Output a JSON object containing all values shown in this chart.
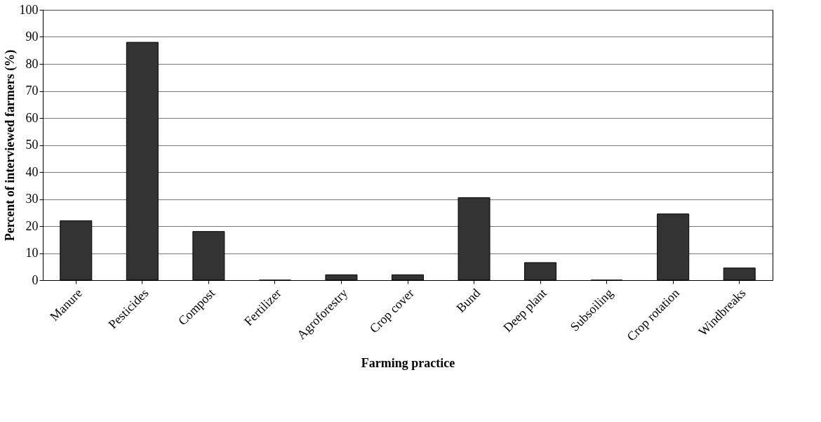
{
  "chart_data": {
    "type": "bar",
    "xlabel": "Farming practice",
    "ylabel": "Percent of interviewed farmers (%)",
    "categories": [
      "Manure",
      "Pesticides",
      "Compost",
      "Fertilizer",
      "Agroforestry",
      "Crop cover",
      "Bund",
      "Deep plant",
      "Subsoiling",
      "Crop rotation",
      "Windbreaks"
    ],
    "values": [
      22,
      88,
      18,
      0,
      2,
      2,
      30.5,
      6.5,
      0,
      24.5,
      4.5
    ],
    "color": "#333333",
    "ylim": [
      0,
      100
    ],
    "yticks": [
      0,
      10,
      20,
      30,
      40,
      50,
      60,
      70,
      80,
      90,
      100
    ],
    "grid": "y"
  }
}
